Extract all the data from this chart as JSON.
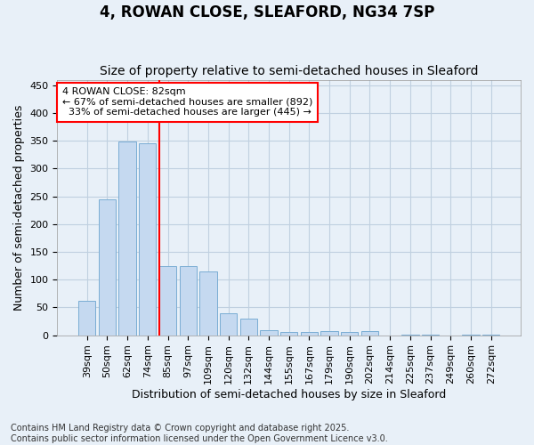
{
  "title": "4, ROWAN CLOSE, SLEAFORD, NG34 7SP",
  "subtitle": "Size of property relative to semi-detached houses in Sleaford",
  "xlabel": "Distribution of semi-detached houses by size in Sleaford",
  "ylabel": "Number of semi-detached properties",
  "categories": [
    "39sqm",
    "50sqm",
    "62sqm",
    "74sqm",
    "85sqm",
    "97sqm",
    "109sqm",
    "120sqm",
    "132sqm",
    "144sqm",
    "155sqm",
    "167sqm",
    "179sqm",
    "190sqm",
    "202sqm",
    "214sqm",
    "225sqm",
    "237sqm",
    "249sqm",
    "260sqm",
    "272sqm"
  ],
  "values": [
    62,
    244,
    348,
    345,
    124,
    124,
    115,
    40,
    30,
    9,
    5,
    5,
    7,
    6,
    7,
    0,
    1,
    1,
    0,
    1,
    1
  ],
  "bar_color": "#c5d9f0",
  "bar_edge_color": "#7aadd4",
  "grid_color": "#c0d0e0",
  "background_color": "#e8f0f8",
  "vline_color": "red",
  "annotation_text": "4 ROWAN CLOSE: 82sqm\n← 67% of semi-detached houses are smaller (892)\n  33% of semi-detached houses are larger (445) →",
  "annotation_box_color": "white",
  "annotation_box_edge": "red",
  "ylim": [
    0,
    460
  ],
  "yticks": [
    0,
    50,
    100,
    150,
    200,
    250,
    300,
    350,
    400,
    450
  ],
  "footnote": "Contains HM Land Registry data © Crown copyright and database right 2025.\nContains public sector information licensed under the Open Government Licence v3.0.",
  "title_fontsize": 12,
  "subtitle_fontsize": 10,
  "label_fontsize": 9,
  "tick_fontsize": 8,
  "footnote_fontsize": 7
}
